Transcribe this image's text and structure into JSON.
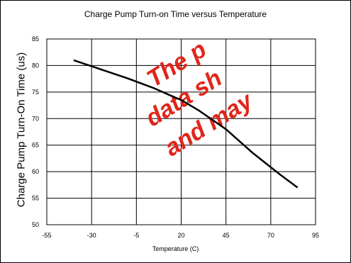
{
  "chart_data": {
    "type": "line",
    "title": "Charge Pump Turn-on Time versus Temperature",
    "xlabel": "Temperature (C)",
    "ylabel": "Charge Pump Turn-On Time (us)",
    "xlim": [
      -55,
      95
    ],
    "ylim": [
      50,
      85
    ],
    "xticks": [
      -55,
      -30,
      -5,
      20,
      45,
      70,
      95
    ],
    "yticks": [
      50,
      55,
      60,
      65,
      70,
      75,
      80,
      85
    ],
    "grid": true,
    "series": [
      {
        "color": "#000000",
        "x": [
          -40,
          -25,
          -10,
          5,
          15,
          20,
          30,
          45,
          60,
          75,
          85
        ],
        "y": [
          81,
          79.3,
          77.6,
          75.7,
          74.2,
          73.5,
          71.5,
          68,
          63.5,
          59.5,
          57
        ]
      }
    ]
  },
  "watermark": {
    "lines": [
      "The p",
      "data sh",
      "and may"
    ],
    "color": "#e1251b"
  }
}
